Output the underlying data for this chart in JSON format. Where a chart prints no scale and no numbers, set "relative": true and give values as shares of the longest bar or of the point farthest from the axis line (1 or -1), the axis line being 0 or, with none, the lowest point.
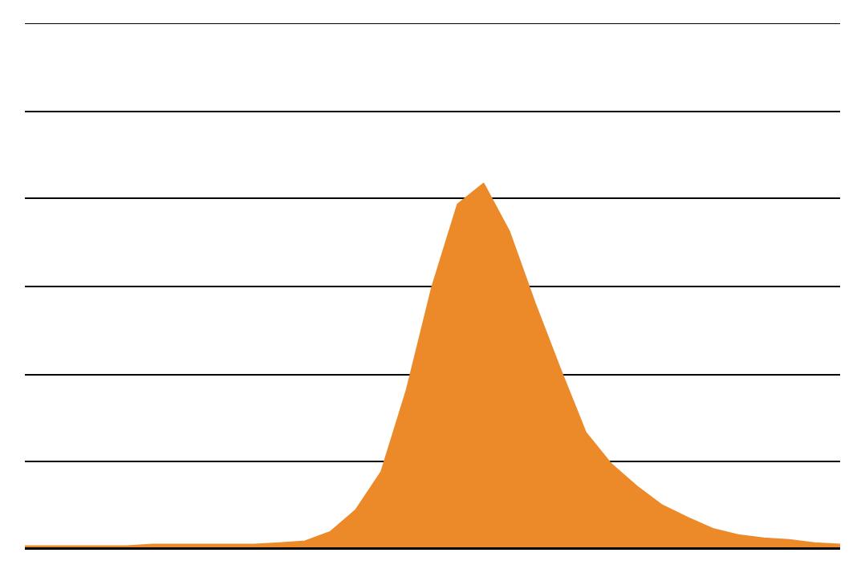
{
  "chart_data": {
    "type": "area",
    "relative": true,
    "grid": "y",
    "categories": [
      null,
      null,
      null,
      null,
      null,
      null,
      null,
      null,
      null,
      null,
      null,
      null,
      null,
      null,
      null,
      null,
      null,
      null,
      null,
      null,
      null,
      null,
      null,
      null,
      null,
      null,
      null,
      null,
      null,
      null,
      null,
      null,
      null
    ],
    "values": [
      0.009,
      0.009,
      0.009,
      0.009,
      0.009,
      0.013,
      0.013,
      0.013,
      0.013,
      0.013,
      0.017,
      0.022,
      0.048,
      0.108,
      0.212,
      0.437,
      0.719,
      0.944,
      1.0,
      0.87,
      0.675,
      0.494,
      0.32,
      0.234,
      0.173,
      0.121,
      0.087,
      0.056,
      0.039,
      0.03,
      0.026,
      0.017,
      0.013
    ],
    "color": "#ec8a2a"
  }
}
